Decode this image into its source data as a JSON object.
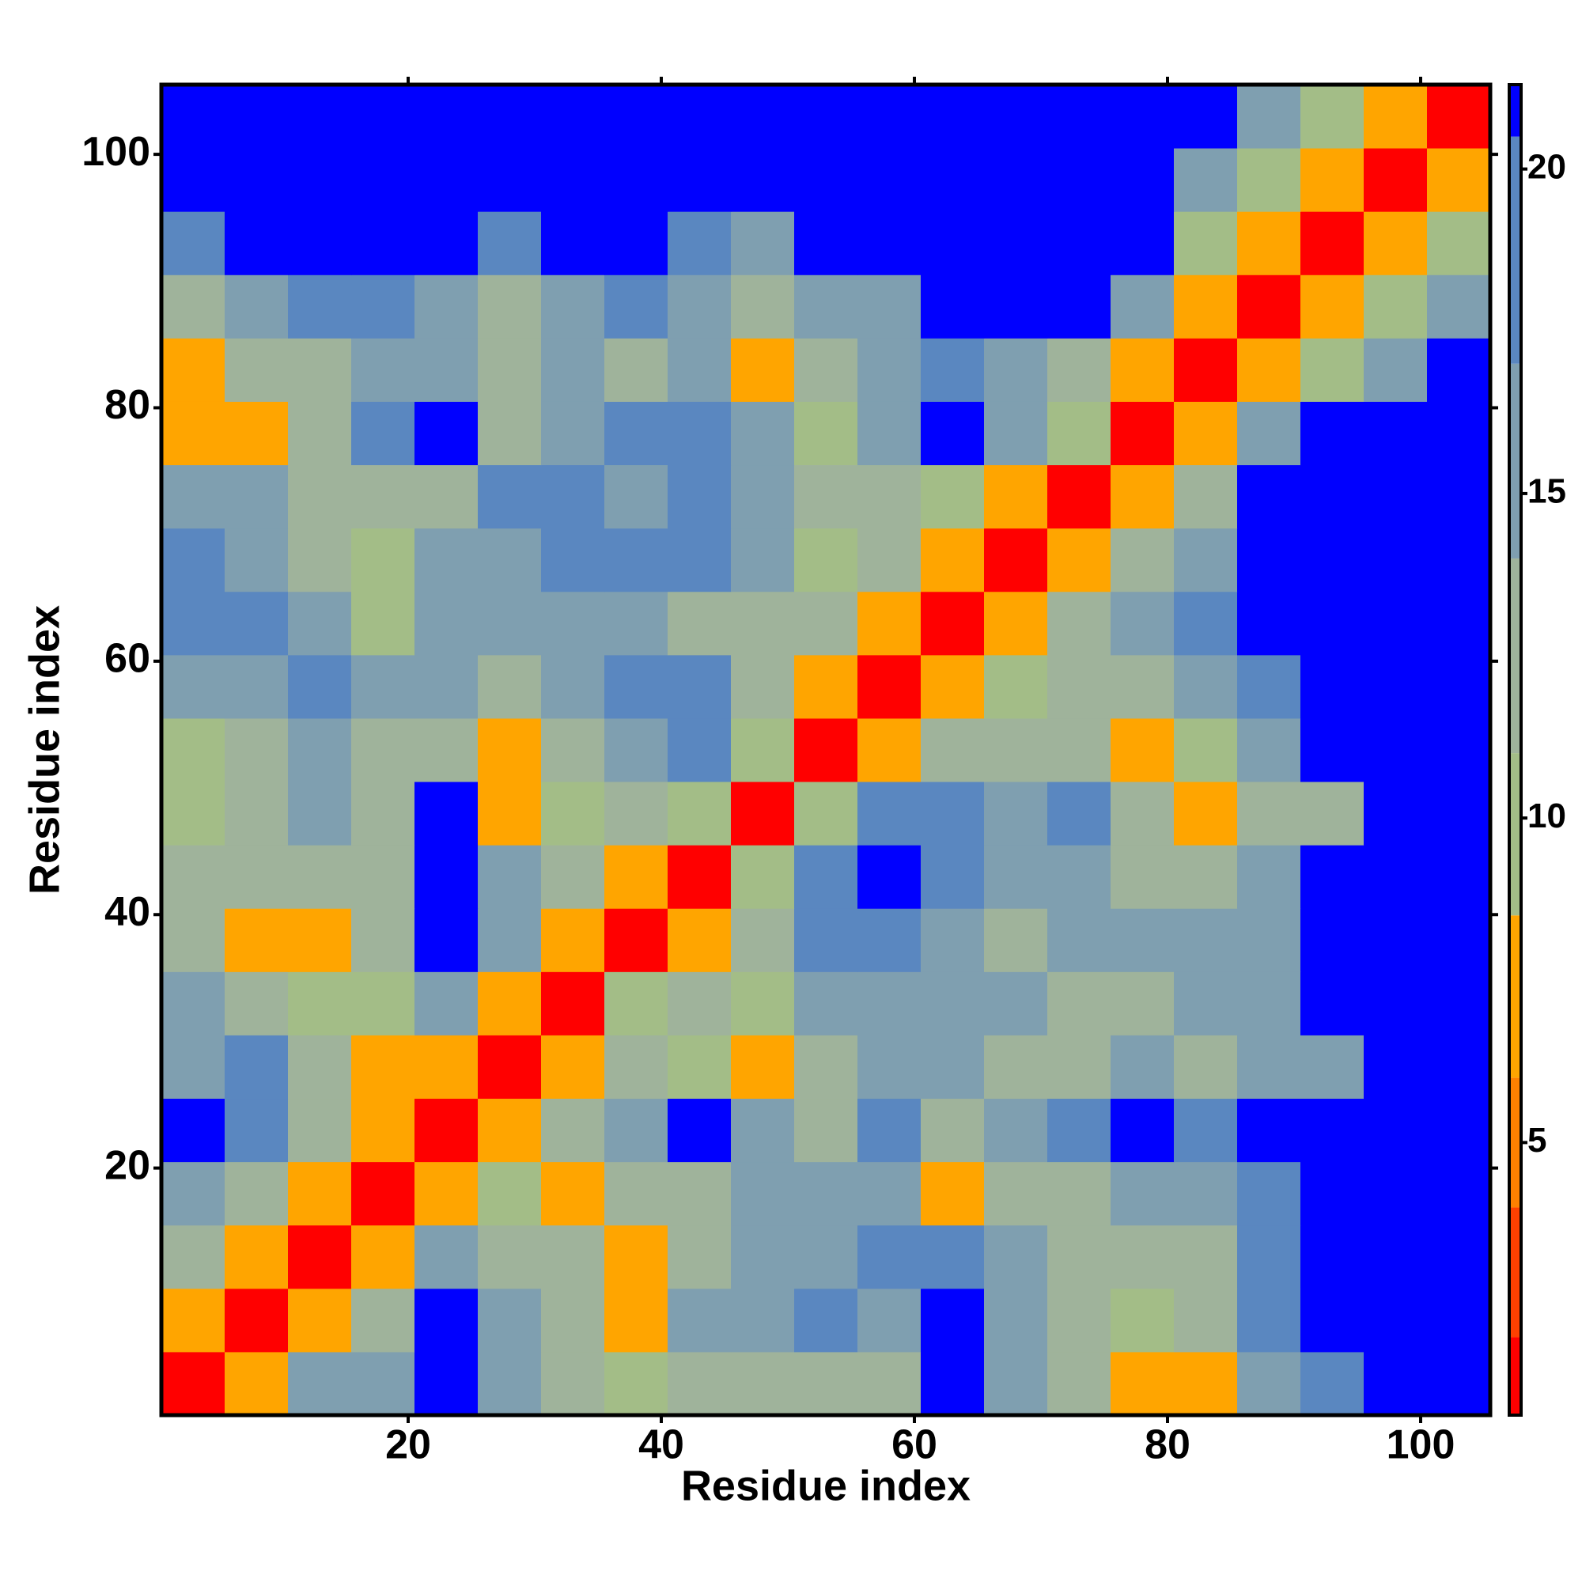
{
  "chart_data": {
    "type": "heatmap",
    "x_label": "Residue index",
    "y_label": "Residue index",
    "x": [
      3,
      8,
      13,
      18,
      23,
      28,
      33,
      38,
      43,
      48,
      53,
      58,
      63,
      68,
      73,
      78,
      83,
      88,
      93,
      98,
      103
    ],
    "y": [
      3,
      8,
      13,
      18,
      23,
      28,
      33,
      38,
      43,
      48,
      53,
      58,
      63,
      68,
      73,
      78,
      83,
      88,
      93,
      98,
      103
    ],
    "z": [
      [
        2,
        8,
        15,
        17,
        21,
        15,
        13,
        11,
        12,
        12,
        12,
        14,
        21,
        17,
        14,
        7,
        7,
        16,
        18,
        21,
        21
      ],
      [
        8,
        2,
        8,
        14,
        21,
        15,
        14,
        8,
        15,
        16,
        19,
        17,
        21,
        16,
        14,
        10,
        12,
        18,
        21,
        21,
        21
      ],
      [
        14,
        8,
        2,
        8,
        15,
        14,
        13,
        7,
        14,
        15,
        17,
        19,
        18,
        16,
        14,
        13,
        14,
        19,
        21,
        21,
        21
      ],
      [
        15,
        13,
        8,
        2,
        7,
        9,
        7,
        12,
        14,
        15,
        17,
        15,
        8,
        13,
        14,
        16,
        17,
        18,
        21,
        21,
        21
      ],
      [
        21,
        18,
        14,
        7,
        2,
        7,
        13,
        17,
        21,
        15,
        14,
        18,
        14,
        15,
        19,
        21,
        18,
        21,
        21,
        21,
        21
      ],
      [
        17,
        18,
        12,
        7,
        8,
        2,
        8,
        13,
        11,
        7,
        12,
        15,
        16,
        14,
        13,
        15,
        14,
        15,
        16,
        21,
        21
      ],
      [
        15,
        14,
        9,
        11,
        15,
        8,
        2,
        9,
        12,
        11,
        15,
        17,
        17,
        16,
        14,
        13,
        15,
        16,
        21,
        21,
        21
      ],
      [
        14,
        8,
        8,
        13,
        21,
        15,
        8,
        2,
        8,
        14,
        18,
        19,
        16,
        14,
        15,
        15,
        16,
        17,
        21,
        21,
        21
      ],
      [
        12,
        12,
        14,
        13,
        21,
        16,
        13,
        8,
        2,
        9,
        18,
        21,
        19,
        17,
        16,
        12,
        13,
        17,
        21,
        21,
        21
      ],
      [
        11,
        13,
        15,
        12,
        21,
        8,
        11,
        13,
        9,
        2,
        10,
        18,
        19,
        17,
        18,
        14,
        8,
        13,
        14,
        21,
        21
      ],
      [
        11,
        14,
        17,
        13,
        14,
        8,
        14,
        16,
        18,
        10,
        2,
        7,
        13,
        14,
        13,
        8,
        11,
        16,
        21,
        21,
        21
      ],
      [
        15,
        17,
        19,
        15,
        17,
        13,
        16,
        18,
        19,
        13,
        7,
        2,
        8,
        11,
        14,
        14,
        15,
        19,
        21,
        21,
        21
      ],
      [
        19,
        18,
        15,
        9,
        16,
        17,
        16,
        17,
        14,
        14,
        12,
        8,
        2,
        7,
        13,
        15,
        18,
        21,
        21,
        21,
        21
      ],
      [
        18,
        16,
        13,
        11,
        15,
        15,
        19,
        19,
        18,
        16,
        11,
        12,
        7,
        2,
        7,
        13,
        17,
        21,
        21,
        21,
        21
      ],
      [
        15,
        15,
        14,
        12,
        14,
        18,
        19,
        16,
        18,
        17,
        14,
        12,
        10,
        7,
        2,
        8,
        14,
        21,
        21,
        21,
        21
      ],
      [
        8,
        8,
        14,
        18,
        21,
        14,
        16,
        18,
        18,
        15,
        9,
        16,
        21,
        16,
        9,
        2,
        8,
        17,
        21,
        21,
        21
      ],
      [
        7,
        12,
        14,
        16,
        17,
        14,
        15,
        14,
        15,
        8,
        13,
        16,
        18,
        15,
        13,
        8,
        2,
        7,
        11,
        17,
        21
      ],
      [
        13,
        17,
        18,
        19,
        17,
        14,
        17,
        18,
        15,
        14,
        15,
        17,
        21,
        21,
        21,
        17,
        7,
        2,
        7,
        11,
        15
      ],
      [
        18,
        21,
        21,
        21,
        21,
        19,
        21,
        21,
        19,
        17,
        21,
        21,
        21,
        21,
        21,
        21,
        11,
        7,
        2,
        7,
        11
      ],
      [
        21,
        21,
        21,
        21,
        21,
        21,
        21,
        21,
        21,
        21,
        21,
        21,
        21,
        21,
        21,
        21,
        16,
        11,
        7,
        2,
        7
      ],
      [
        21,
        21,
        21,
        21,
        21,
        21,
        21,
        21,
        21,
        21,
        21,
        21,
        21,
        21,
        21,
        21,
        21,
        15,
        11,
        7,
        2
      ]
    ],
    "xlim": [
      0.5,
      105.5
    ],
    "ylim": [
      0.5,
      105.5
    ],
    "xticks": [
      20,
      40,
      60,
      80,
      100
    ],
    "yticks": [
      20,
      40,
      60,
      80,
      100
    ],
    "clim": [
      0.8,
      21.3
    ],
    "cticks": [
      5,
      10,
      15,
      20
    ],
    "colorscale": [
      {
        "max": 2,
        "color": "#ff0000"
      },
      {
        "max": 4,
        "color": "#ff4000"
      },
      {
        "max": 6,
        "color": "#ff8000"
      },
      {
        "max": 8.5,
        "color": "#ffa500"
      },
      {
        "max": 11,
        "color": "#a3bd87"
      },
      {
        "max": 14,
        "color": "#9fb39b"
      },
      {
        "max": 17,
        "color": "#7f9fb0"
      },
      {
        "max": 20.5,
        "color": "#5a87c0"
      },
      {
        "max": 21.3,
        "color": "#0000ff"
      }
    ]
  }
}
